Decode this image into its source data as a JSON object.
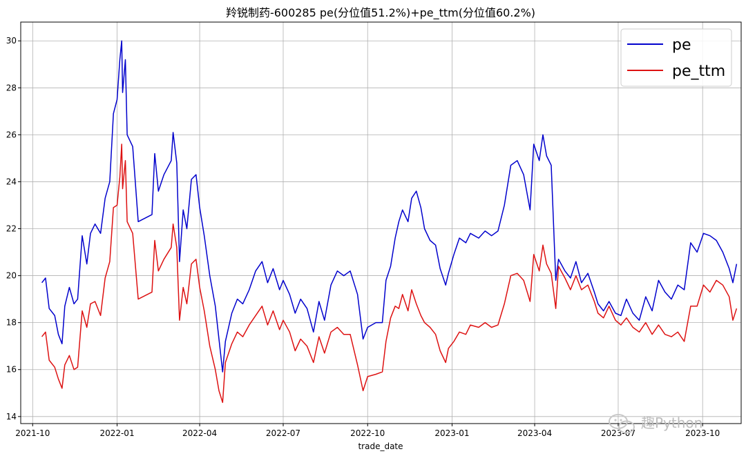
{
  "chart_data": {
    "type": "line",
    "title": "羚锐制药-600285 pe(分位值51.2%)+pe_ttm(分位值60.2%)",
    "xlabel": "trade_date",
    "ylabel": "",
    "x_ticks": [
      "2021-10",
      "2022-01",
      "2022-04",
      "2022-07",
      "2022-10",
      "2023-01",
      "2023-04",
      "2023-07",
      "2023-10"
    ],
    "y_ticks": [
      14,
      16,
      18,
      20,
      22,
      24,
      26,
      28,
      30
    ],
    "xlim": [
      "2021-09-18",
      "2023-11-12"
    ],
    "ylim": [
      13.7,
      30.8
    ],
    "grid": true,
    "legend": "top-right",
    "series": [
      {
        "name": "pe",
        "color": "#0000cc",
        "points": [
          [
            "2021-10-11",
            19.7
          ],
          [
            "2021-10-15",
            19.9
          ],
          [
            "2021-10-19",
            18.6
          ],
          [
            "2021-10-25",
            18.3
          ],
          [
            "2021-10-29",
            17.5
          ],
          [
            "2021-11-02",
            17.1
          ],
          [
            "2021-11-05",
            18.7
          ],
          [
            "2021-11-10",
            19.5
          ],
          [
            "2021-11-15",
            18.8
          ],
          [
            "2021-11-19",
            19.0
          ],
          [
            "2021-11-24",
            21.7
          ],
          [
            "2021-11-29",
            20.5
          ],
          [
            "2021-12-03",
            21.8
          ],
          [
            "2021-12-08",
            22.2
          ],
          [
            "2021-12-14",
            21.8
          ],
          [
            "2021-12-19",
            23.3
          ],
          [
            "2021-12-24",
            24.0
          ],
          [
            "2021-12-28",
            26.9
          ],
          [
            "2022-01-01",
            27.5
          ],
          [
            "2022-01-04",
            29.2
          ],
          [
            "2022-01-06",
            30.0
          ],
          [
            "2022-01-07",
            27.8
          ],
          [
            "2022-01-10",
            29.2
          ],
          [
            "2022-01-12",
            26.0
          ],
          [
            "2022-01-18",
            25.5
          ],
          [
            "2022-01-24",
            22.3
          ],
          [
            "2022-02-08",
            22.6
          ],
          [
            "2022-02-11",
            25.2
          ],
          [
            "2022-02-15",
            23.6
          ],
          [
            "2022-02-21",
            24.3
          ],
          [
            "2022-03-01",
            24.9
          ],
          [
            "2022-03-03",
            26.1
          ],
          [
            "2022-03-07",
            24.8
          ],
          [
            "2022-03-10",
            20.6
          ],
          [
            "2022-03-14",
            22.8
          ],
          [
            "2022-03-18",
            22.0
          ],
          [
            "2022-03-23",
            24.1
          ],
          [
            "2022-03-28",
            24.3
          ],
          [
            "2022-04-01",
            22.9
          ],
          [
            "2022-04-06",
            21.7
          ],
          [
            "2022-04-12",
            20.0
          ],
          [
            "2022-04-18",
            18.7
          ],
          [
            "2022-04-22",
            17.3
          ],
          [
            "2022-04-26",
            15.9
          ],
          [
            "2022-04-29",
            17.2
          ],
          [
            "2022-05-06",
            18.4
          ],
          [
            "2022-05-12",
            19.0
          ],
          [
            "2022-05-18",
            18.8
          ],
          [
            "2022-05-25",
            19.4
          ],
          [
            "2022-06-01",
            20.2
          ],
          [
            "2022-06-08",
            20.6
          ],
          [
            "2022-06-14",
            19.7
          ],
          [
            "2022-06-20",
            20.3
          ],
          [
            "2022-06-27",
            19.4
          ],
          [
            "2022-07-01",
            19.8
          ],
          [
            "2022-07-08",
            19.2
          ],
          [
            "2022-07-14",
            18.4
          ],
          [
            "2022-07-20",
            19.0
          ],
          [
            "2022-07-27",
            18.6
          ],
          [
            "2022-08-03",
            17.6
          ],
          [
            "2022-08-09",
            18.9
          ],
          [
            "2022-08-15",
            18.1
          ],
          [
            "2022-08-22",
            19.6
          ],
          [
            "2022-08-29",
            20.2
          ],
          [
            "2022-09-05",
            20.0
          ],
          [
            "2022-09-12",
            20.2
          ],
          [
            "2022-09-20",
            19.2
          ],
          [
            "2022-09-26",
            17.3
          ],
          [
            "2022-10-01",
            17.8
          ],
          [
            "2022-10-10",
            18.0
          ],
          [
            "2022-10-17",
            18.0
          ],
          [
            "2022-10-21",
            19.8
          ],
          [
            "2022-10-26",
            20.4
          ],
          [
            "2022-10-31",
            21.6
          ],
          [
            "2022-11-04",
            22.3
          ],
          [
            "2022-11-08",
            22.8
          ],
          [
            "2022-11-14",
            22.3
          ],
          [
            "2022-11-18",
            23.3
          ],
          [
            "2022-11-23",
            23.6
          ],
          [
            "2022-11-28",
            22.9
          ],
          [
            "2022-12-02",
            22.0
          ],
          [
            "2022-12-08",
            21.5
          ],
          [
            "2022-12-14",
            21.3
          ],
          [
            "2022-12-19",
            20.3
          ],
          [
            "2022-12-25",
            19.6
          ],
          [
            "2022-12-28",
            20.1
          ],
          [
            "2023-01-03",
            20.9
          ],
          [
            "2023-01-09",
            21.6
          ],
          [
            "2023-01-16",
            21.4
          ],
          [
            "2023-01-21",
            21.8
          ],
          [
            "2023-01-30",
            21.6
          ],
          [
            "2023-02-06",
            21.9
          ],
          [
            "2023-02-13",
            21.7
          ],
          [
            "2023-02-20",
            21.9
          ],
          [
            "2023-02-27",
            23.0
          ],
          [
            "2023-03-06",
            24.7
          ],
          [
            "2023-03-13",
            24.9
          ],
          [
            "2023-03-20",
            24.3
          ],
          [
            "2023-03-27",
            22.8
          ],
          [
            "2023-03-31",
            25.6
          ],
          [
            "2023-04-06",
            24.9
          ],
          [
            "2023-04-10",
            26.0
          ],
          [
            "2023-04-14",
            25.1
          ],
          [
            "2023-04-19",
            24.7
          ],
          [
            "2023-04-24",
            19.8
          ],
          [
            "2023-04-27",
            20.7
          ],
          [
            "2023-05-04",
            20.2
          ],
          [
            "2023-05-10",
            19.9
          ],
          [
            "2023-05-16",
            20.6
          ],
          [
            "2023-05-22",
            19.7
          ],
          [
            "2023-05-29",
            20.1
          ],
          [
            "2023-06-05",
            19.3
          ],
          [
            "2023-06-09",
            18.8
          ],
          [
            "2023-06-15",
            18.5
          ],
          [
            "2023-06-21",
            18.9
          ],
          [
            "2023-06-28",
            18.4
          ],
          [
            "2023-07-04",
            18.3
          ],
          [
            "2023-07-10",
            19.0
          ],
          [
            "2023-07-17",
            18.4
          ],
          [
            "2023-07-24",
            18.1
          ],
          [
            "2023-07-31",
            19.1
          ],
          [
            "2023-08-07",
            18.5
          ],
          [
            "2023-08-14",
            19.8
          ],
          [
            "2023-08-21",
            19.3
          ],
          [
            "2023-08-28",
            19.0
          ],
          [
            "2023-09-04",
            19.6
          ],
          [
            "2023-09-11",
            19.4
          ],
          [
            "2023-09-18",
            21.4
          ],
          [
            "2023-09-25",
            21.0
          ],
          [
            "2023-10-02",
            21.8
          ],
          [
            "2023-10-09",
            21.7
          ],
          [
            "2023-10-16",
            21.5
          ],
          [
            "2023-10-23",
            21.0
          ],
          [
            "2023-10-30",
            20.3
          ],
          [
            "2023-11-03",
            19.7
          ],
          [
            "2023-11-07",
            20.5
          ]
        ]
      },
      {
        "name": "pe_ttm",
        "color": "#dd1111",
        "points": [
          [
            "2021-10-11",
            17.4
          ],
          [
            "2021-10-15",
            17.6
          ],
          [
            "2021-10-19",
            16.4
          ],
          [
            "2021-10-25",
            16.1
          ],
          [
            "2021-10-29",
            15.6
          ],
          [
            "2021-11-02",
            15.2
          ],
          [
            "2021-11-05",
            16.2
          ],
          [
            "2021-11-10",
            16.6
          ],
          [
            "2021-11-15",
            16.0
          ],
          [
            "2021-11-19",
            16.1
          ],
          [
            "2021-11-24",
            18.5
          ],
          [
            "2021-11-29",
            17.8
          ],
          [
            "2021-12-03",
            18.8
          ],
          [
            "2021-12-08",
            18.9
          ],
          [
            "2021-12-14",
            18.3
          ],
          [
            "2021-12-19",
            19.9
          ],
          [
            "2021-12-24",
            20.6
          ],
          [
            "2021-12-28",
            22.9
          ],
          [
            "2022-01-01",
            23.0
          ],
          [
            "2022-01-04",
            24.2
          ],
          [
            "2022-01-06",
            25.6
          ],
          [
            "2022-01-07",
            23.7
          ],
          [
            "2022-01-10",
            24.9
          ],
          [
            "2022-01-12",
            22.3
          ],
          [
            "2022-01-18",
            21.8
          ],
          [
            "2022-01-24",
            19.0
          ],
          [
            "2022-02-08",
            19.3
          ],
          [
            "2022-02-11",
            21.5
          ],
          [
            "2022-02-15",
            20.2
          ],
          [
            "2022-02-21",
            20.7
          ],
          [
            "2022-03-01",
            21.2
          ],
          [
            "2022-03-03",
            22.2
          ],
          [
            "2022-03-07",
            21.2
          ],
          [
            "2022-03-10",
            18.1
          ],
          [
            "2022-03-14",
            19.5
          ],
          [
            "2022-03-18",
            18.8
          ],
          [
            "2022-03-23",
            20.5
          ],
          [
            "2022-03-28",
            20.7
          ],
          [
            "2022-04-01",
            19.5
          ],
          [
            "2022-04-06",
            18.5
          ],
          [
            "2022-04-12",
            17.0
          ],
          [
            "2022-04-18",
            16.0
          ],
          [
            "2022-04-22",
            15.1
          ],
          [
            "2022-04-26",
            14.6
          ],
          [
            "2022-04-29",
            16.3
          ],
          [
            "2022-05-06",
            17.1
          ],
          [
            "2022-05-12",
            17.6
          ],
          [
            "2022-05-18",
            17.4
          ],
          [
            "2022-05-25",
            17.9
          ],
          [
            "2022-06-01",
            18.3
          ],
          [
            "2022-06-08",
            18.7
          ],
          [
            "2022-06-14",
            17.9
          ],
          [
            "2022-06-20",
            18.5
          ],
          [
            "2022-06-27",
            17.7
          ],
          [
            "2022-07-01",
            18.1
          ],
          [
            "2022-07-08",
            17.6
          ],
          [
            "2022-07-14",
            16.8
          ],
          [
            "2022-07-20",
            17.3
          ],
          [
            "2022-07-27",
            17.0
          ],
          [
            "2022-08-03",
            16.3
          ],
          [
            "2022-08-09",
            17.4
          ],
          [
            "2022-08-15",
            16.7
          ],
          [
            "2022-08-22",
            17.6
          ],
          [
            "2022-08-29",
            17.8
          ],
          [
            "2022-09-05",
            17.5
          ],
          [
            "2022-09-12",
            17.5
          ],
          [
            "2022-09-20",
            16.2
          ],
          [
            "2022-09-26",
            15.1
          ],
          [
            "2022-10-01",
            15.7
          ],
          [
            "2022-10-10",
            15.8
          ],
          [
            "2022-10-17",
            15.9
          ],
          [
            "2022-10-21",
            17.2
          ],
          [
            "2022-10-26",
            18.2
          ],
          [
            "2022-10-31",
            18.7
          ],
          [
            "2022-11-04",
            18.6
          ],
          [
            "2022-11-08",
            19.2
          ],
          [
            "2022-11-14",
            18.5
          ],
          [
            "2022-11-18",
            19.4
          ],
          [
            "2022-11-23",
            18.8
          ],
          [
            "2022-11-28",
            18.3
          ],
          [
            "2022-12-02",
            18.0
          ],
          [
            "2022-12-08",
            17.8
          ],
          [
            "2022-12-14",
            17.5
          ],
          [
            "2022-12-19",
            16.8
          ],
          [
            "2022-12-25",
            16.3
          ],
          [
            "2022-12-28",
            16.9
          ],
          [
            "2023-01-03",
            17.2
          ],
          [
            "2023-01-09",
            17.6
          ],
          [
            "2023-01-16",
            17.5
          ],
          [
            "2023-01-21",
            17.9
          ],
          [
            "2023-01-30",
            17.8
          ],
          [
            "2023-02-06",
            18.0
          ],
          [
            "2023-02-13",
            17.8
          ],
          [
            "2023-02-20",
            17.9
          ],
          [
            "2023-02-27",
            18.8
          ],
          [
            "2023-03-06",
            20.0
          ],
          [
            "2023-03-13",
            20.1
          ],
          [
            "2023-03-20",
            19.8
          ],
          [
            "2023-03-27",
            18.9
          ],
          [
            "2023-03-31",
            20.9
          ],
          [
            "2023-04-06",
            20.2
          ],
          [
            "2023-04-10",
            21.3
          ],
          [
            "2023-04-14",
            20.5
          ],
          [
            "2023-04-19",
            20.1
          ],
          [
            "2023-04-24",
            18.6
          ],
          [
            "2023-04-27",
            20.4
          ],
          [
            "2023-05-04",
            19.9
          ],
          [
            "2023-05-10",
            19.4
          ],
          [
            "2023-05-16",
            20.0
          ],
          [
            "2023-05-22",
            19.4
          ],
          [
            "2023-05-29",
            19.6
          ],
          [
            "2023-06-05",
            18.9
          ],
          [
            "2023-06-09",
            18.4
          ],
          [
            "2023-06-15",
            18.2
          ],
          [
            "2023-06-21",
            18.7
          ],
          [
            "2023-06-28",
            18.1
          ],
          [
            "2023-07-04",
            17.9
          ],
          [
            "2023-07-10",
            18.2
          ],
          [
            "2023-07-17",
            17.8
          ],
          [
            "2023-07-24",
            17.6
          ],
          [
            "2023-07-31",
            18.0
          ],
          [
            "2023-08-07",
            17.5
          ],
          [
            "2023-08-14",
            17.9
          ],
          [
            "2023-08-21",
            17.5
          ],
          [
            "2023-08-28",
            17.4
          ],
          [
            "2023-09-04",
            17.6
          ],
          [
            "2023-09-11",
            17.2
          ],
          [
            "2023-09-18",
            18.7
          ],
          [
            "2023-09-25",
            18.7
          ],
          [
            "2023-10-02",
            19.6
          ],
          [
            "2023-10-09",
            19.3
          ],
          [
            "2023-10-16",
            19.8
          ],
          [
            "2023-10-23",
            19.6
          ],
          [
            "2023-10-30",
            19.1
          ],
          [
            "2023-11-03",
            18.1
          ],
          [
            "2023-11-07",
            18.6
          ]
        ]
      }
    ]
  },
  "watermark": {
    "text": "趣Python"
  }
}
